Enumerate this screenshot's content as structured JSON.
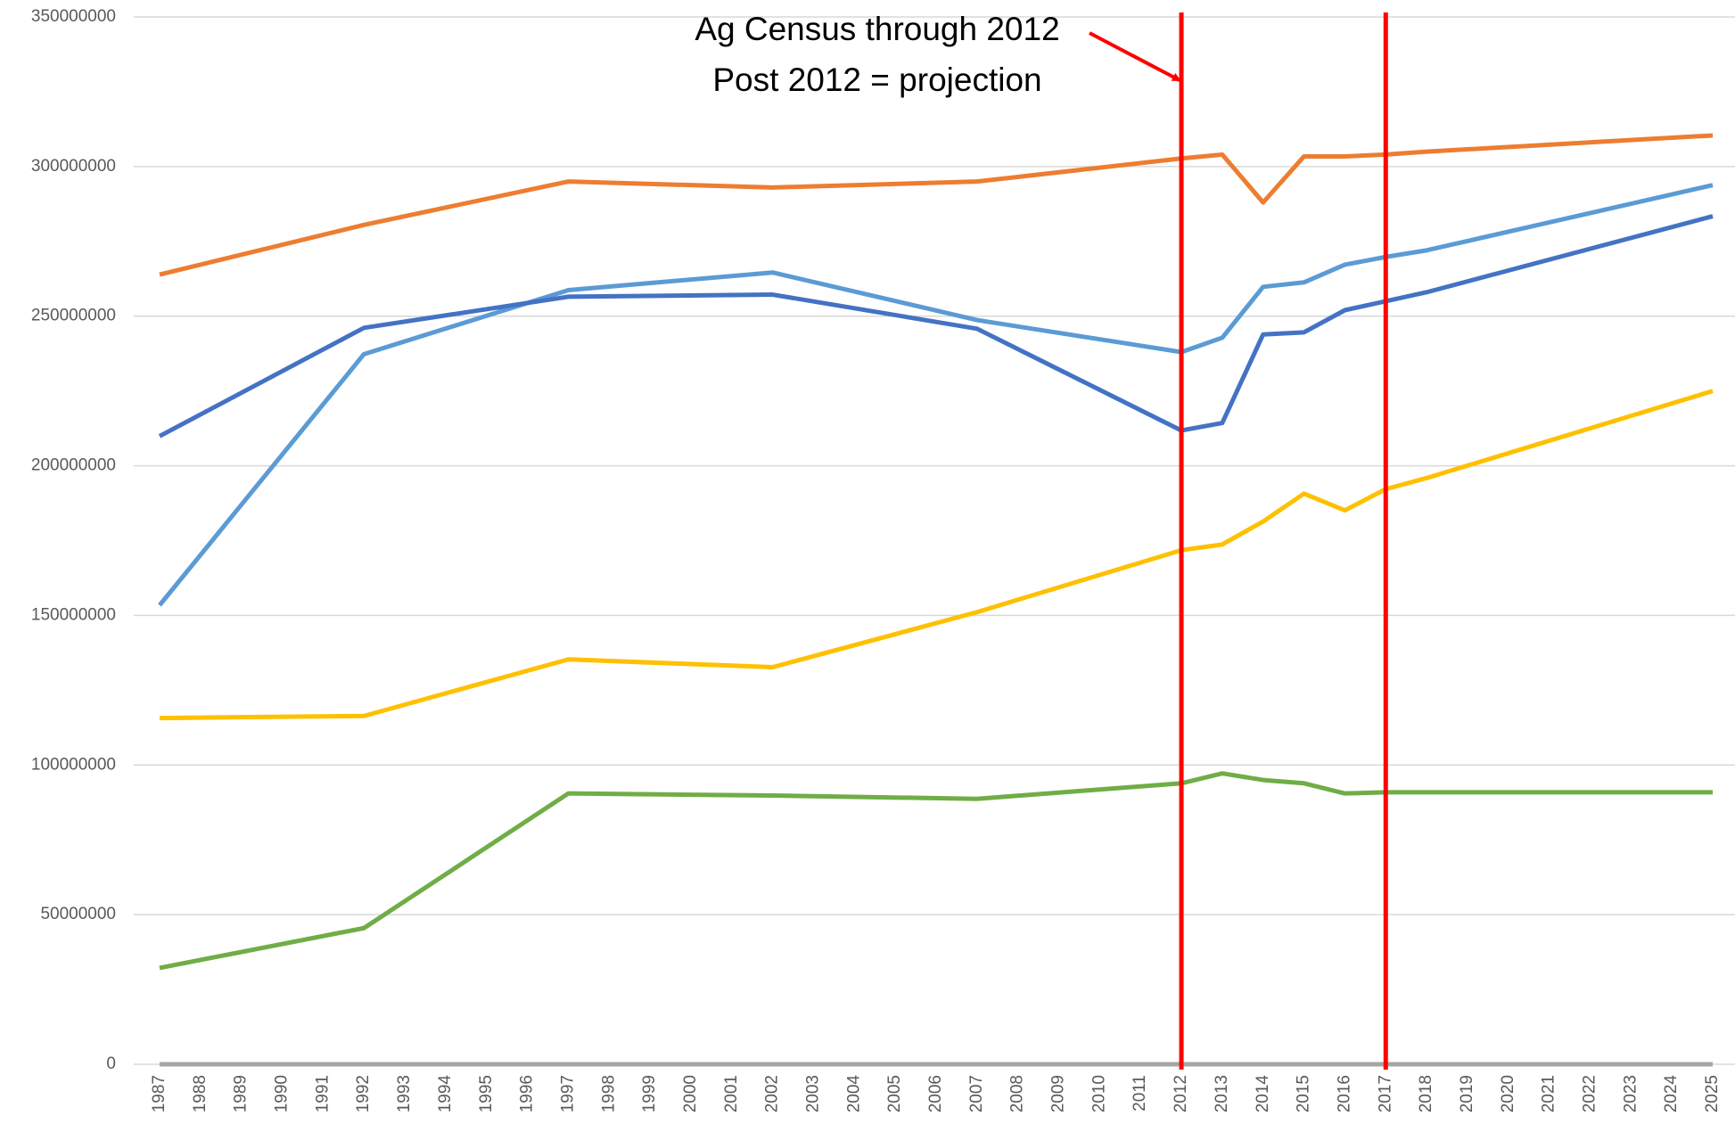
{
  "chart_data": {
    "type": "line",
    "annotations": [
      "Ag Census through 2012",
      "Post 2012 = projection"
    ],
    "x": [
      1987,
      1992,
      1997,
      2002,
      2007,
      2012,
      2013,
      2014,
      2015,
      2016,
      2017,
      2018,
      2025
    ],
    "series": [
      {
        "color": "#ed7d31",
        "values": [
          263900000,
          280500000,
          295000000,
          293000000,
          295000000,
          302700000,
          304000000,
          288000000,
          303400000,
          303400000,
          304000000,
          305000000,
          310400000
        ]
      },
      {
        "color": "#5b9bd5",
        "values": [
          153400000,
          237300000,
          258700000,
          264600000,
          248700000,
          238000000,
          242800000,
          259800000,
          261300000,
          267200000,
          269800000,
          272000000,
          293800000
        ]
      },
      {
        "color": "#4472c4",
        "values": [
          209900000,
          246100000,
          256500000,
          257200000,
          245800000,
          211800000,
          214300000,
          243900000,
          244600000,
          252000000,
          255000000,
          258000000,
          283400000
        ]
      },
      {
        "color": "#ffc000",
        "values": [
          115700000,
          116400000,
          135300000,
          132700000,
          151100000,
          171800000,
          173700000,
          181400000,
          190700000,
          185100000,
          192200000,
          195900000,
          225000000
        ]
      },
      {
        "color": "#70ad47",
        "values": [
          32200000,
          45500000,
          90500000,
          89800000,
          88700000,
          93900000,
          97200000,
          95000000,
          93900000,
          90500000,
          90900000,
          90900000,
          90900000
        ]
      },
      {
        "color": "#a5a5a5",
        "values": [
          0,
          0,
          0,
          0,
          0,
          0,
          0,
          0,
          0,
          0,
          0,
          0,
          0
        ]
      }
    ],
    "xlim": [
      1987,
      2025
    ],
    "xticks": [
      1987,
      1988,
      1989,
      1990,
      1991,
      1992,
      1993,
      1994,
      1995,
      1996,
      1997,
      1998,
      1999,
      2000,
      2001,
      2002,
      2003,
      2004,
      2005,
      2006,
      2007,
      2008,
      2009,
      2010,
      2011,
      2012,
      2013,
      2014,
      2015,
      2016,
      2017,
      2018,
      2019,
      2020,
      2021,
      2022,
      2023,
      2024,
      2025
    ],
    "ylim": [
      0,
      350000000
    ],
    "yticks": [
      0,
      50000000,
      100000000,
      150000000,
      200000000,
      250000000,
      300000000,
      350000000
    ],
    "grid": true,
    "reference_lines": {
      "color": "#ff0000",
      "values": [
        2012,
        2017
      ]
    }
  }
}
